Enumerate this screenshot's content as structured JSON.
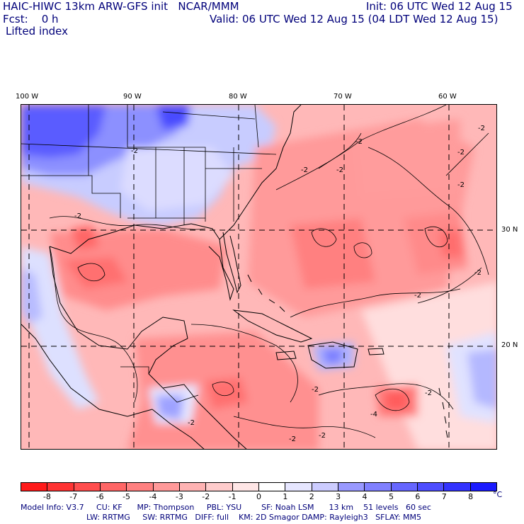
{
  "header": {
    "model_title": "HAIC-HIWC 13km ARW-GFS init   NCAR/MMM",
    "init_line": "Init: 06 UTC Wed 12 Aug 15",
    "fcst_line": "Fcst:    0 h",
    "valid_line": "Valid: 06 UTC Wed 12 Aug 15 (04 LDT Wed 12 Aug 15)",
    "field_label": "Lifted index"
  },
  "map": {
    "lon_labels": [
      "100 W",
      "90 W",
      "80 W",
      "70 W",
      "60 W"
    ],
    "lat_labels": [
      "30 N",
      "20 N"
    ],
    "contour_label": "-2",
    "contour_label_strong": "-4"
  },
  "colorbar": {
    "ticks": [
      "-8",
      "-7",
      "-6",
      "-5",
      "-4",
      "-3",
      "-2",
      "-1",
      "0",
      "1",
      "2",
      "3",
      "4",
      "5",
      "6",
      "7",
      "8"
    ],
    "unit": "°C",
    "colors": [
      "#ff1a1a",
      "#ff3333",
      "#ff4d4d",
      "#ff6666",
      "#ff8080",
      "#ff9999",
      "#ffb3b3",
      "#ffcccc",
      "#ffe6e6",
      "#ffffff",
      "#e6e6ff",
      "#ccccff",
      "#9999ff",
      "#8080ff",
      "#6666ff",
      "#4d4dff",
      "#3333ff",
      "#1a1aff"
    ]
  },
  "model_info": {
    "line1": "Model Info: V3.7     CU: KF      MP: Thompson     PBL: YSU        SF: Noah LSM      13 km    51 levels   60 sec",
    "line2": "LW: RRTMG     SW: RRTMG   DIFF: full    KM: 2D Smagor DAMP: Rayleigh3   SFLAY: MM5"
  }
}
